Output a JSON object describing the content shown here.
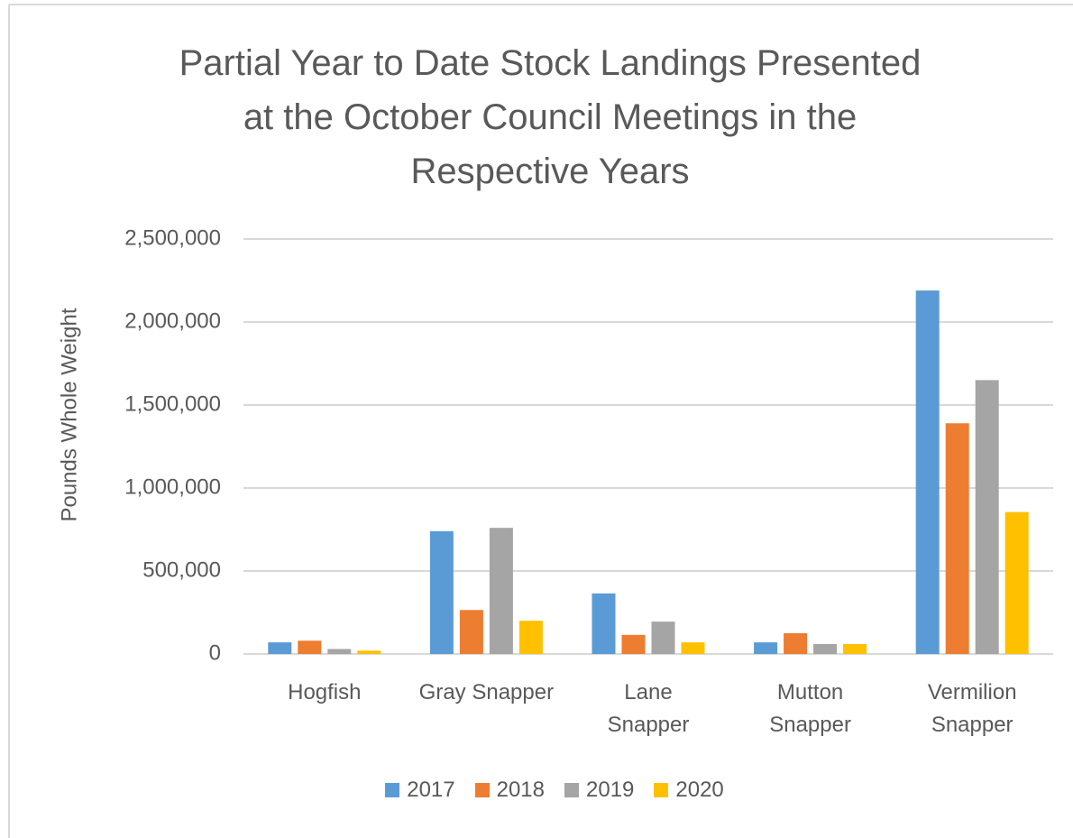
{
  "chart_data": {
    "type": "bar",
    "title": "Partial Year to Date Stock Landings Presented\nat the October Council Meetings in the\nRespective Years",
    "y_label": "Pounds Whole Weight",
    "categories": [
      "Hogfish",
      "Gray Snapper",
      "Lane\nSnapper",
      "Mutton\nSnapper",
      "Vermilion\nSnapper"
    ],
    "series": [
      {
        "name": "2017",
        "color": "#5b9bd5",
        "values": [
          70000,
          740000,
          365000,
          70000,
          2190000
        ]
      },
      {
        "name": "2018",
        "color": "#ed7d31",
        "values": [
          80000,
          265000,
          115000,
          125000,
          1390000
        ]
      },
      {
        "name": "2019",
        "color": "#a5a5a5",
        "values": [
          30000,
          760000,
          195000,
          60000,
          1650000
        ]
      },
      {
        "name": "2020",
        "color": "#ffc000",
        "values": [
          20000,
          200000,
          70000,
          60000,
          855000
        ]
      }
    ],
    "ylim": [
      0,
      2500000
    ],
    "yticks": [
      0,
      {
        "value": 500000,
        "label": "500,000"
      },
      {
        "value": 1000000,
        "label": "1,000,000"
      },
      {
        "value": 1500000,
        "label": "1,500,000"
      },
      {
        "value": 2000000,
        "label": "2,000,000"
      },
      {
        "value": 2500000,
        "label": "2,500,000"
      }
    ],
    "grid": true,
    "legend": "bottom"
  }
}
